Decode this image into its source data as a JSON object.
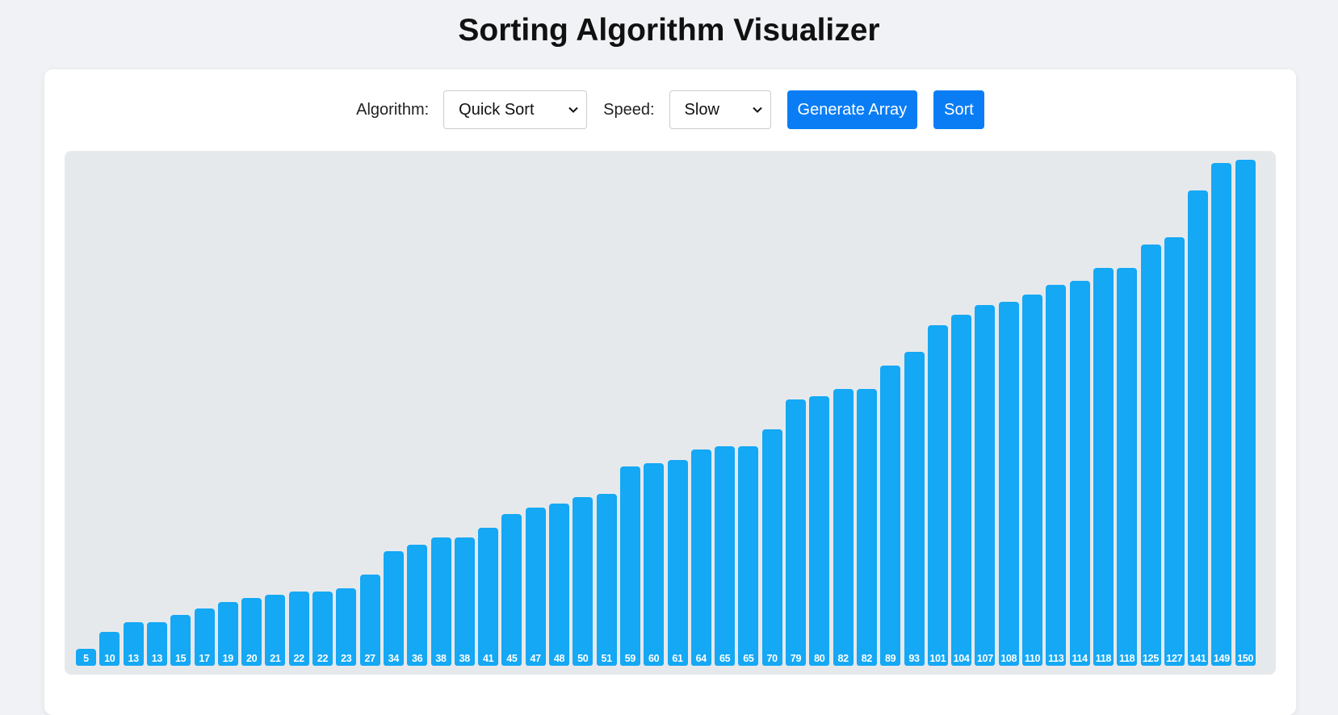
{
  "page": {
    "title": "Sorting Algorithm Visualizer"
  },
  "controls": {
    "algorithm_label": "Algorithm:",
    "algorithm_selected": "Quick Sort",
    "speed_label": "Speed:",
    "speed_selected": "Slow",
    "generate_label": "Generate Array",
    "sort_label": "Sort"
  },
  "icons": {
    "select_arrow": "chevron-down-icon"
  },
  "colors": {
    "bar": "#14a8f5",
    "button": "#0a7df5",
    "chart_background": "#e6e9ec"
  },
  "chart_data": {
    "type": "bar",
    "values": [
      5,
      10,
      13,
      13,
      15,
      17,
      19,
      20,
      21,
      22,
      22,
      23,
      27,
      34,
      36,
      38,
      38,
      41,
      45,
      47,
      48,
      50,
      51,
      59,
      60,
      61,
      64,
      65,
      65,
      70,
      79,
      80,
      82,
      82,
      89,
      93,
      101,
      104,
      107,
      108,
      110,
      113,
      114,
      118,
      118,
      125,
      127,
      141,
      149,
      150
    ],
    "labels": [
      "5",
      "10",
      "13",
      "13",
      "15",
      "17",
      "19",
      "20",
      "21",
      "22",
      "22",
      "23",
      "27",
      "34",
      "36",
      "38",
      "38",
      "41",
      "45",
      "47",
      "48",
      "50",
      "51",
      "59",
      "60",
      "61",
      "64",
      "65",
      "65",
      "70",
      "79",
      "80",
      "82",
      "82",
      "89",
      "93",
      "101",
      "104",
      "107",
      "108",
      "110",
      "113",
      "114",
      "118",
      "118",
      "125",
      "127",
      "141",
      "149",
      "150"
    ],
    "ylim": [
      0,
      150
    ],
    "title": "",
    "xlabel": "",
    "ylabel": "",
    "grid": false,
    "legend": "none"
  }
}
